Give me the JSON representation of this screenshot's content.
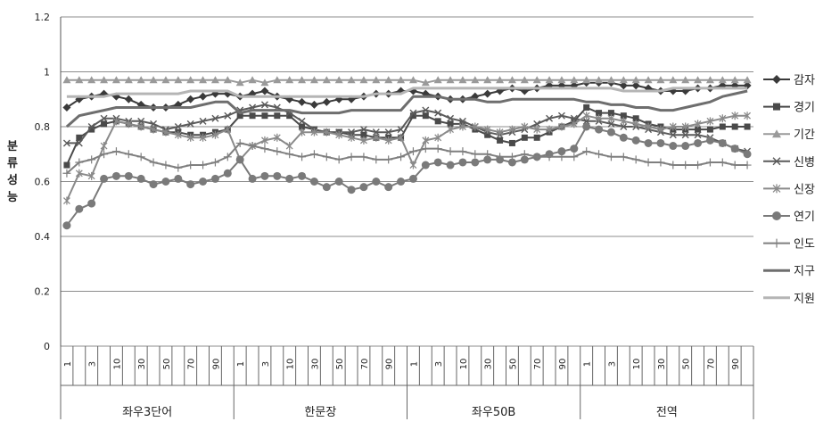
{
  "chart_data": {
    "type": "line",
    "title": "",
    "ylabel": "분류성능",
    "xlabel": "",
    "ylim": [
      0,
      1.2
    ],
    "yticks": [
      "0",
      "0.2",
      "0.4",
      "0.6",
      "0.8",
      "1",
      "1.2"
    ],
    "grid": true,
    "legend_position": "right",
    "groups": [
      "좌우3단어",
      "한문장",
      "좌우50B",
      "전역"
    ],
    "x_sub_labels": [
      "1",
      "",
      "3",
      "",
      "10",
      "",
      "30",
      "",
      "50",
      "",
      "70",
      "",
      "90",
      ""
    ],
    "series": [
      {
        "name": "감자",
        "color": "#3a3a3a",
        "marker": "diamond",
        "values": [
          0.87,
          0.9,
          0.91,
          0.92,
          0.91,
          0.9,
          0.88,
          0.87,
          0.87,
          0.88,
          0.9,
          0.91,
          0.92,
          0.92,
          0.91,
          0.92,
          0.93,
          0.91,
          0.9,
          0.89,
          0.88,
          0.89,
          0.9,
          0.9,
          0.91,
          0.92,
          0.92,
          0.93,
          0.93,
          0.92,
          0.91,
          0.9,
          0.9,
          0.91,
          0.92,
          0.93,
          0.94,
          0.93,
          0.94,
          0.95,
          0.95,
          0.95,
          0.96,
          0.96,
          0.96,
          0.95,
          0.95,
          0.94,
          0.93,
          0.93,
          0.93,
          0.94,
          0.94,
          0.95,
          0.95,
          0.95
        ]
      },
      {
        "name": "경기",
        "color": "#4a4a4a",
        "marker": "square",
        "values": [
          0.66,
          0.76,
          0.79,
          0.81,
          0.82,
          0.81,
          0.8,
          0.79,
          0.78,
          0.78,
          0.77,
          0.77,
          0.78,
          0.79,
          0.84,
          0.84,
          0.84,
          0.84,
          0.84,
          0.8,
          0.79,
          0.78,
          0.78,
          0.77,
          0.77,
          0.76,
          0.76,
          0.76,
          0.84,
          0.84,
          0.82,
          0.81,
          0.81,
          0.79,
          0.77,
          0.75,
          0.74,
          0.76,
          0.76,
          0.78,
          0.8,
          0.82,
          0.87,
          0.85,
          0.85,
          0.84,
          0.83,
          0.81,
          0.8,
          0.79,
          0.79,
          0.79,
          0.79,
          0.8,
          0.8,
          0.8
        ]
      },
      {
        "name": "기간",
        "color": "#9a9a9a",
        "marker": "triangle",
        "values": [
          0.97,
          0.97,
          0.97,
          0.97,
          0.97,
          0.97,
          0.97,
          0.97,
          0.97,
          0.97,
          0.97,
          0.97,
          0.97,
          0.97,
          0.96,
          0.97,
          0.96,
          0.97,
          0.97,
          0.97,
          0.97,
          0.97,
          0.97,
          0.97,
          0.97,
          0.97,
          0.97,
          0.97,
          0.97,
          0.96,
          0.97,
          0.97,
          0.97,
          0.97,
          0.97,
          0.97,
          0.97,
          0.97,
          0.97,
          0.97,
          0.97,
          0.97,
          0.97,
          0.97,
          0.97,
          0.97,
          0.97,
          0.97,
          0.97,
          0.97,
          0.97,
          0.97,
          0.97,
          0.97,
          0.97,
          0.97
        ]
      },
      {
        "name": "신병",
        "color": "#5a5a5a",
        "marker": "x",
        "values": [
          0.74,
          0.74,
          0.8,
          0.83,
          0.83,
          0.82,
          0.82,
          0.81,
          0.79,
          0.8,
          0.81,
          0.82,
          0.83,
          0.84,
          0.86,
          0.87,
          0.88,
          0.87,
          0.85,
          0.82,
          0.79,
          0.78,
          0.78,
          0.78,
          0.79,
          0.78,
          0.78,
          0.79,
          0.85,
          0.86,
          0.85,
          0.83,
          0.82,
          0.8,
          0.78,
          0.77,
          0.78,
          0.79,
          0.81,
          0.83,
          0.84,
          0.83,
          0.82,
          0.82,
          0.81,
          0.8,
          0.8,
          0.79,
          0.78,
          0.77,
          0.77,
          0.77,
          0.76,
          0.74,
          0.72,
          0.71
        ]
      },
      {
        "name": "신장",
        "color": "#8a8a8a",
        "marker": "star",
        "values": [
          0.53,
          0.63,
          0.62,
          0.73,
          0.82,
          0.81,
          0.8,
          0.79,
          0.78,
          0.77,
          0.76,
          0.76,
          0.77,
          0.79,
          0.68,
          0.73,
          0.75,
          0.76,
          0.73,
          0.78,
          0.78,
          0.78,
          0.77,
          0.76,
          0.75,
          0.76,
          0.75,
          0.76,
          0.66,
          0.75,
          0.76,
          0.79,
          0.8,
          0.8,
          0.79,
          0.78,
          0.79,
          0.8,
          0.79,
          0.79,
          0.8,
          0.81,
          0.84,
          0.83,
          0.83,
          0.82,
          0.81,
          0.8,
          0.79,
          0.8,
          0.8,
          0.81,
          0.82,
          0.83,
          0.84,
          0.84
        ]
      },
      {
        "name": "연기",
        "color": "#7a7a7a",
        "marker": "circle",
        "values": [
          0.44,
          0.5,
          0.52,
          0.61,
          0.62,
          0.62,
          0.61,
          0.59,
          0.6,
          0.61,
          0.59,
          0.6,
          0.61,
          0.63,
          0.68,
          0.61,
          0.62,
          0.62,
          0.61,
          0.62,
          0.6,
          0.58,
          0.6,
          0.57,
          0.58,
          0.6,
          0.58,
          0.6,
          0.61,
          0.66,
          0.67,
          0.66,
          0.67,
          0.67,
          0.68,
          0.68,
          0.67,
          0.68,
          0.69,
          0.7,
          0.71,
          0.72,
          0.8,
          0.79,
          0.78,
          0.76,
          0.75,
          0.74,
          0.74,
          0.73,
          0.73,
          0.74,
          0.75,
          0.74,
          0.72,
          0.7
        ]
      },
      {
        "name": "인도",
        "color": "#7f7f7f",
        "marker": "plus",
        "values": [
          0.63,
          0.67,
          0.68,
          0.7,
          0.71,
          0.7,
          0.69,
          0.67,
          0.66,
          0.65,
          0.66,
          0.66,
          0.67,
          0.69,
          0.74,
          0.73,
          0.72,
          0.71,
          0.7,
          0.69,
          0.7,
          0.69,
          0.68,
          0.69,
          0.69,
          0.68,
          0.68,
          0.69,
          0.71,
          0.72,
          0.72,
          0.71,
          0.71,
          0.7,
          0.7,
          0.69,
          0.69,
          0.7,
          0.69,
          0.69,
          0.69,
          0.69,
          0.71,
          0.7,
          0.69,
          0.69,
          0.68,
          0.67,
          0.67,
          0.66,
          0.66,
          0.66,
          0.67,
          0.67,
          0.66,
          0.66
        ]
      },
      {
        "name": "지구",
        "color": "#6e6e6e",
        "marker": "none",
        "values": [
          0.8,
          0.84,
          0.85,
          0.86,
          0.87,
          0.87,
          0.87,
          0.87,
          0.87,
          0.87,
          0.87,
          0.88,
          0.89,
          0.89,
          0.85,
          0.86,
          0.86,
          0.86,
          0.86,
          0.85,
          0.85,
          0.85,
          0.85,
          0.86,
          0.86,
          0.86,
          0.86,
          0.86,
          0.91,
          0.91,
          0.91,
          0.9,
          0.9,
          0.9,
          0.89,
          0.89,
          0.9,
          0.9,
          0.9,
          0.9,
          0.9,
          0.9,
          0.89,
          0.89,
          0.88,
          0.88,
          0.87,
          0.87,
          0.86,
          0.86,
          0.87,
          0.88,
          0.89,
          0.91,
          0.92,
          0.93
        ]
      },
      {
        "name": "지원",
        "color": "#b5b5b5",
        "marker": "none",
        "values": [
          0.91,
          0.91,
          0.91,
          0.91,
          0.92,
          0.92,
          0.92,
          0.92,
          0.92,
          0.92,
          0.93,
          0.93,
          0.93,
          0.93,
          0.91,
          0.91,
          0.91,
          0.91,
          0.91,
          0.91,
          0.91,
          0.91,
          0.91,
          0.91,
          0.91,
          0.92,
          0.92,
          0.92,
          0.94,
          0.94,
          0.94,
          0.94,
          0.94,
          0.94,
          0.94,
          0.94,
          0.94,
          0.94,
          0.94,
          0.94,
          0.94,
          0.94,
          0.94,
          0.94,
          0.94,
          0.93,
          0.93,
          0.93,
          0.93,
          0.94,
          0.94,
          0.94,
          0.94,
          0.94,
          0.94,
          0.94
        ]
      }
    ]
  }
}
